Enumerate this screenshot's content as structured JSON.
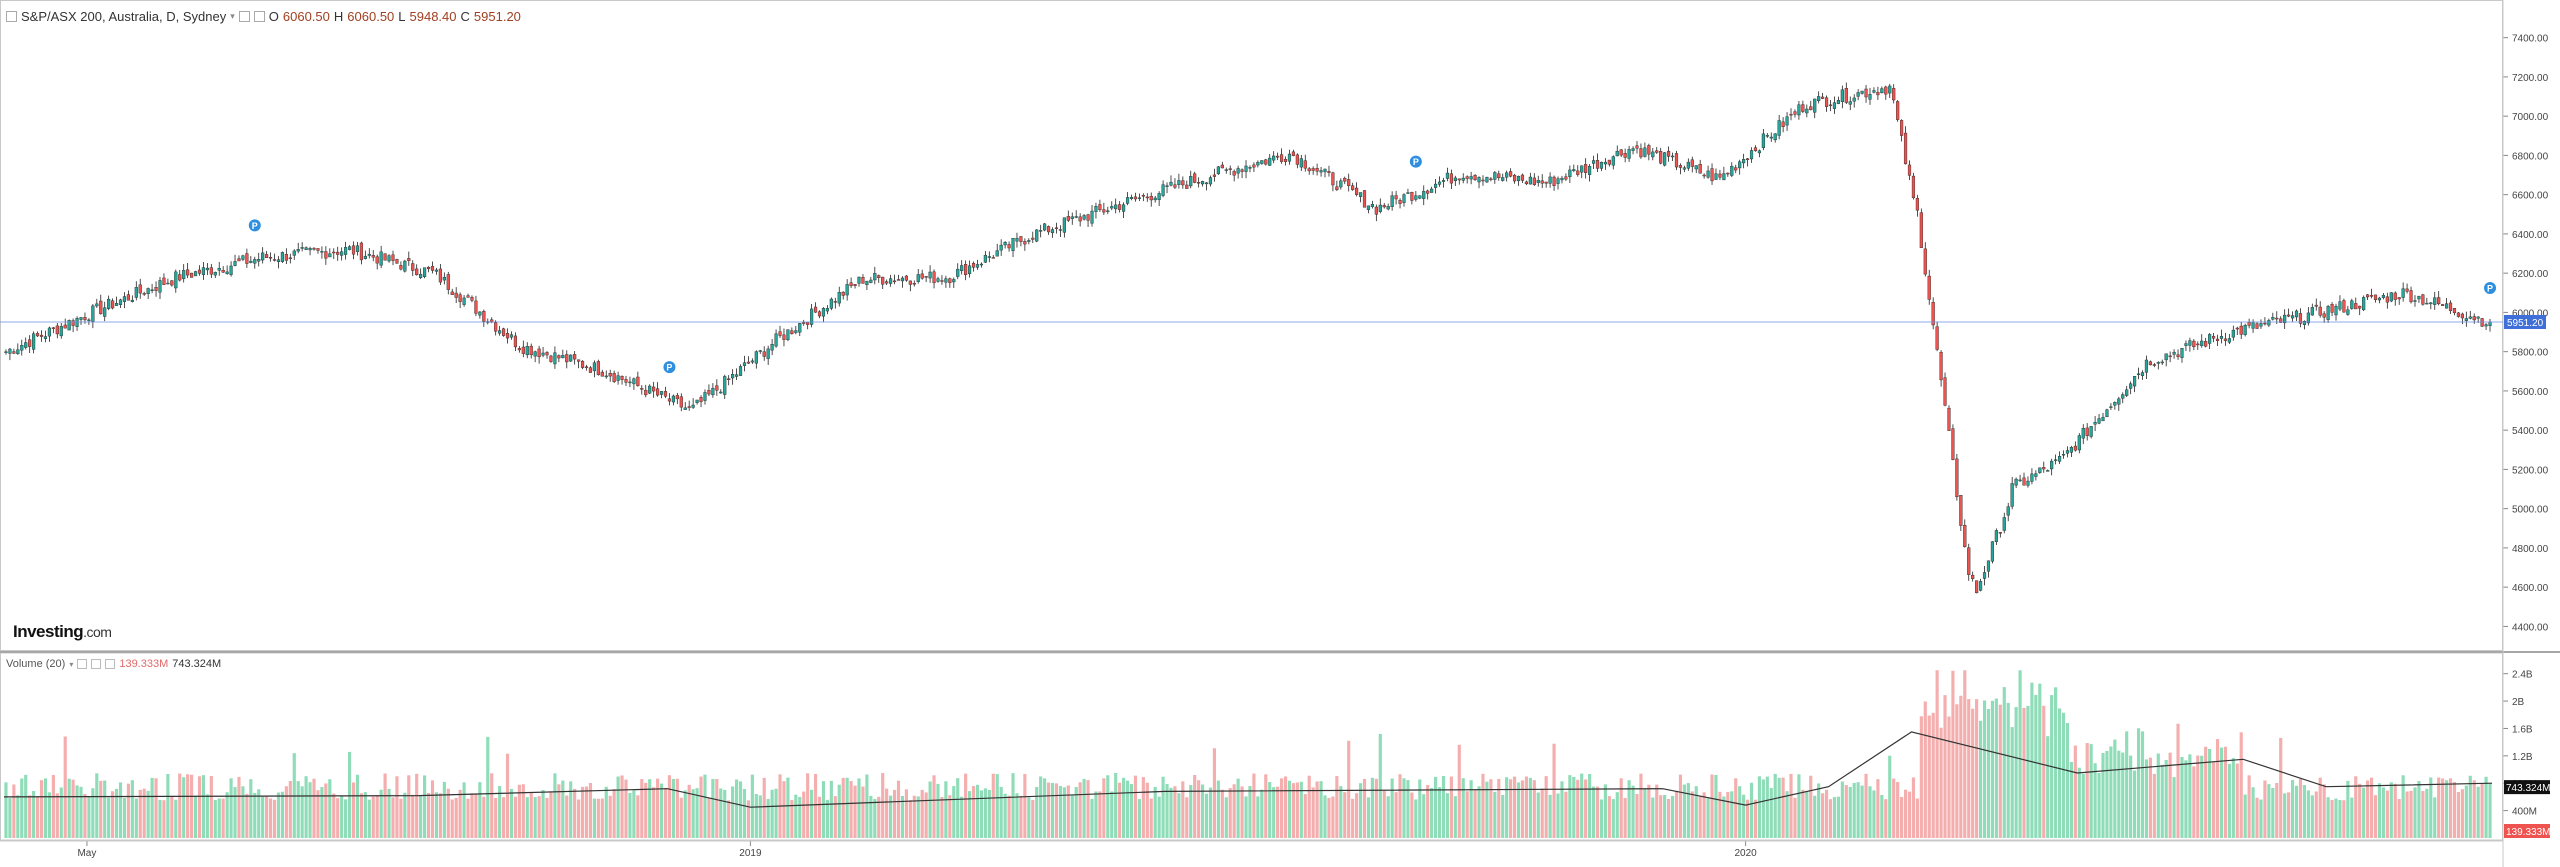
{
  "legend": {
    "symbol": "S&P/ASX 200, Australia, D, Sydney",
    "open_label": "O",
    "open": "6060.50",
    "high_label": "H",
    "high": "6060.50",
    "low_label": "L",
    "low": "5948.40",
    "close_label": "C",
    "close": "5951.20"
  },
  "volume_legend": {
    "label": "Volume (20)",
    "value_last": "139.333M",
    "value_ma": "743.324M"
  },
  "brand": {
    "name": "Investing",
    "suffix": ".com"
  },
  "colors": {
    "up": "#26a69a",
    "down": "#ef5350",
    "vol_up": "#8fdcb8",
    "vol_down": "#f4aeae",
    "price_tag": "#3f6fd8",
    "flag": "#2e8fe0"
  },
  "chart_data": [
    {
      "type": "candlestick",
      "title": "S&P/ASX 200, Australia, D, Sydney",
      "x_labels": [
        "May",
        "2019",
        "2020"
      ],
      "y_ticks": [
        "4400.00",
        "4600.00",
        "4800.00",
        "5000.00",
        "5200.00",
        "5400.00",
        "5600.00",
        "5800.00",
        "6000.00",
        "6200.00",
        "6400.00",
        "6600.00",
        "6800.00",
        "7000.00",
        "7200.00",
        "7400.00"
      ],
      "ylim": [
        4290,
        7490
      ],
      "last_price_label": "5951.20",
      "x_range": [
        "2018-04",
        "2020-10"
      ],
      "series_close_approx": [
        [
          "2018-04",
          5800
        ],
        [
          "2018-05",
          6000
        ],
        [
          "2018-06",
          6180
        ],
        [
          "2018-07",
          6280
        ],
        [
          "2018-08",
          6320
        ],
        [
          "2018-09",
          6200
        ],
        [
          "2018-10",
          5830
        ],
        [
          "2018-11",
          5700
        ],
        [
          "2018-12",
          5500
        ],
        [
          "2019-01",
          5860
        ],
        [
          "2019-02",
          6170
        ],
        [
          "2019-03",
          6180
        ],
        [
          "2019-04",
          6400
        ],
        [
          "2019-05",
          6550
        ],
        [
          "2019-06",
          6690
        ],
        [
          "2019-07",
          6810
        ],
        [
          "2019-08",
          6530
        ],
        [
          "2019-09",
          6710
        ],
        [
          "2019-10",
          6660
        ],
        [
          "2019-11",
          6840
        ],
        [
          "2019-12",
          6680
        ],
        [
          "2020-01",
          7060
        ],
        [
          "2020-02",
          7150
        ],
        [
          "2020-03",
          5000
        ],
        [
          "2020-04",
          5250
        ],
        [
          "2020-05",
          5750
        ],
        [
          "2020-06",
          5900
        ],
        [
          "2020-07",
          6000
        ],
        [
          "2020-08",
          6100
        ],
        [
          "2020-09",
          5950
        ]
      ],
      "marks": [
        {
          "date": "2018-07",
          "label": "P"
        },
        {
          "date": "2018-12",
          "label": "P"
        },
        {
          "date": "2019-09",
          "label": "P"
        },
        {
          "date": "2020-10",
          "label": "P"
        }
      ]
    },
    {
      "type": "bar",
      "title": "Volume (20)",
      "y_ticks": [
        "400M",
        "800M",
        "1.2B",
        "1.6B",
        "2B",
        "2.4B"
      ],
      "ylim": [
        0,
        2.6
      ],
      "last_value_label": "139.333M",
      "ma_value_label": "743.324M",
      "ma_approx": [
        [
          "2018-04",
          0.6
        ],
        [
          "2018-09",
          0.62
        ],
        [
          "2018-12",
          0.72
        ],
        [
          "2019-01",
          0.45
        ],
        [
          "2019-06",
          0.68
        ],
        [
          "2019-12",
          0.72
        ],
        [
          "2020-01",
          0.48
        ],
        [
          "2020-02",
          0.75
        ],
        [
          "2020-03",
          1.55
        ],
        [
          "2020-05",
          0.95
        ],
        [
          "2020-07",
          1.15
        ],
        [
          "2020-08",
          0.75
        ],
        [
          "2020-10",
          0.8
        ]
      ]
    }
  ]
}
